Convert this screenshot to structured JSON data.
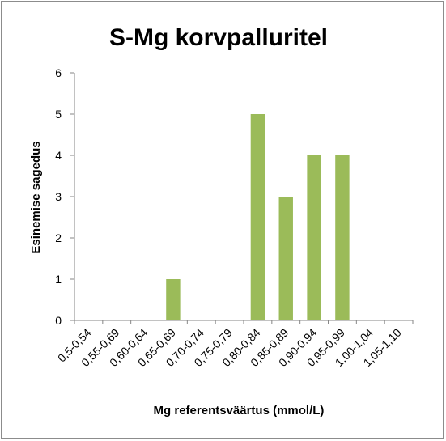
{
  "chart_data": {
    "type": "bar",
    "title": "S-Mg korvpalluritel",
    "xlabel": "Mg referentsväärtus (mmol/L)",
    "ylabel": "Esinemise sagedus",
    "categories": [
      "0,5-0,54",
      "0,55-0,69",
      "0,60-0,64",
      "0,65-0,69",
      "0,70-0,74",
      "0,75-0,79",
      "0,80-0,84",
      "0,85-0,89",
      "0,90-0,94",
      "0,95-0,99",
      "1,00-1,04",
      "1,05-1,10"
    ],
    "values": [
      0,
      0,
      0,
      1,
      0,
      0,
      5,
      3,
      4,
      4,
      0,
      0
    ],
    "ylim": [
      0,
      6
    ],
    "yticks": [
      "0",
      "1",
      "2",
      "3",
      "4",
      "5",
      "6"
    ],
    "grid": false,
    "legend": "none",
    "bar_color": "#9bbb59",
    "axis_color": "#868686"
  }
}
